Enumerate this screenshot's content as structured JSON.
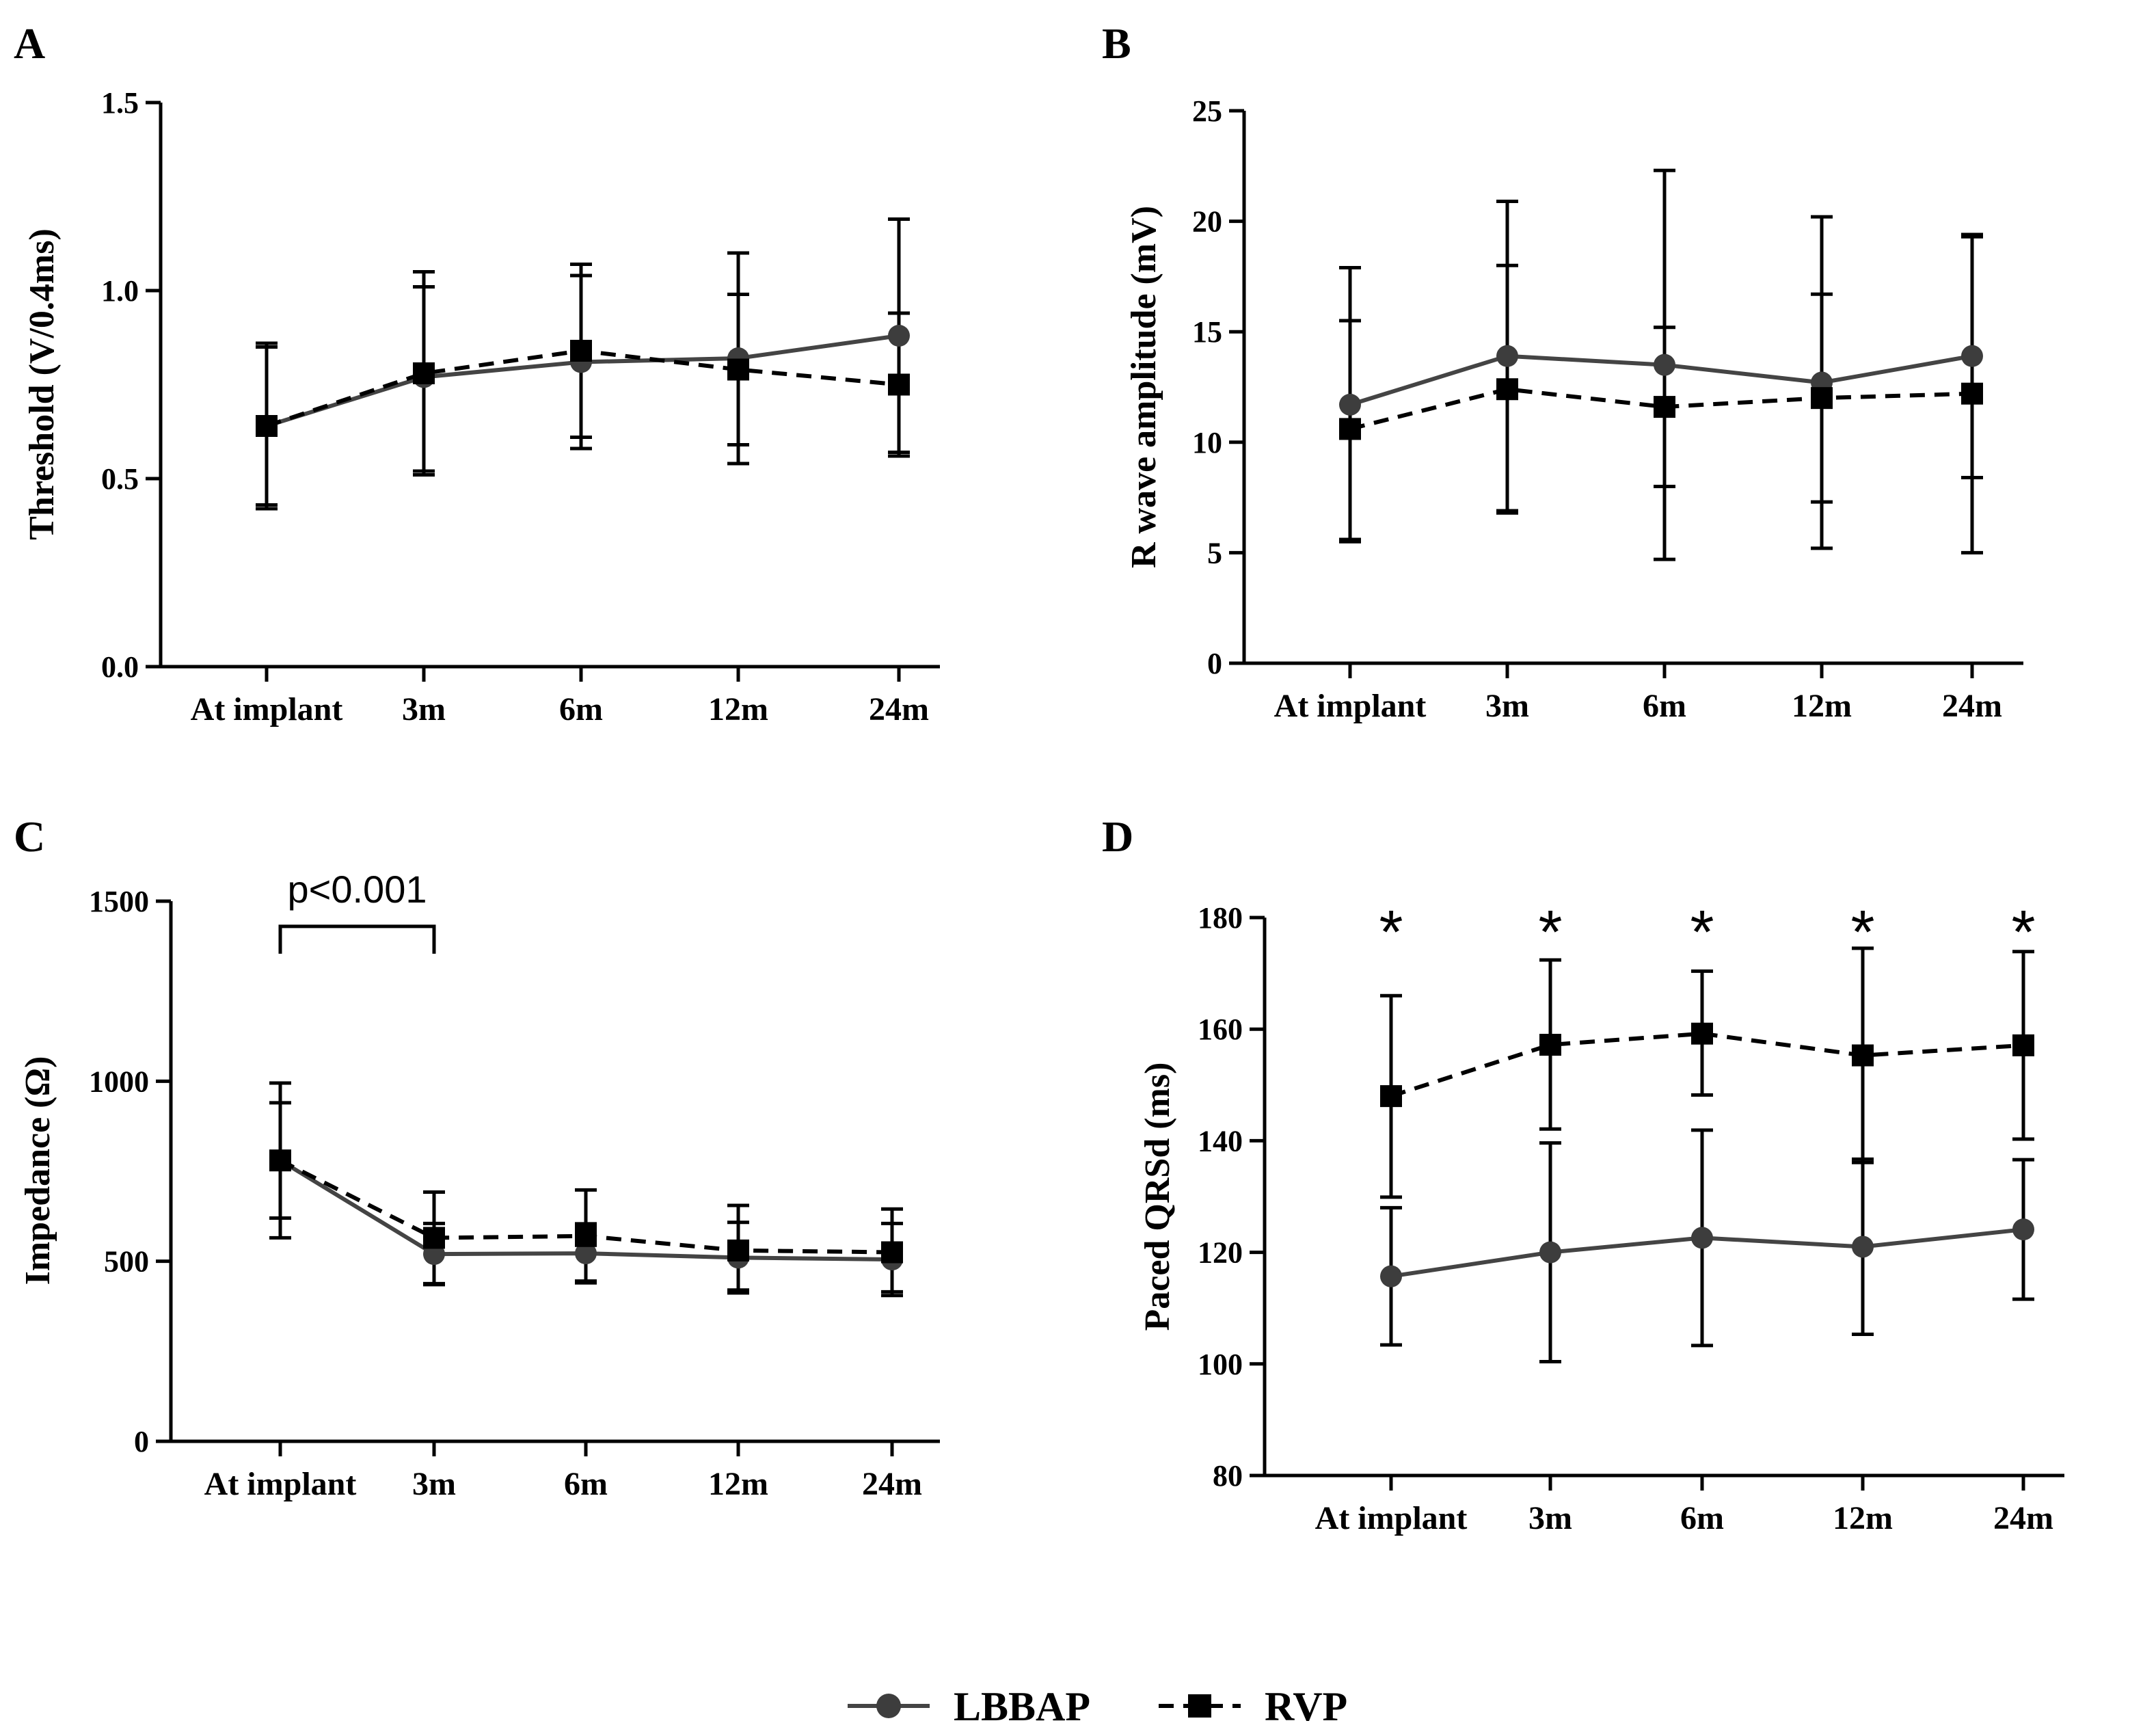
{
  "legend": {
    "items": [
      {
        "name": "LBBAP",
        "color": "#444444",
        "marker": "circle",
        "style": "solid"
      },
      {
        "name": "RVP",
        "color": "#000000",
        "marker": "square",
        "style": "dashed"
      }
    ]
  },
  "chart_data": [
    {
      "panel": "A",
      "type": "line",
      "categories": [
        "At implant",
        "3m",
        "6m",
        "12m",
        "24m"
      ],
      "ylabel": "Threshold (V/0.4ms)",
      "ylim": [
        0,
        1.5
      ],
      "yticks": [
        "0.0",
        "0.5",
        "1.0",
        "1.5"
      ],
      "ytick_values": [
        0,
        0.5,
        1.0,
        1.5
      ],
      "series": [
        {
          "name": "LBBAP",
          "values": [
            0.64,
            0.77,
            0.81,
            0.82,
            0.88
          ],
          "err_low": [
            0.43,
            0.52,
            0.58,
            0.59,
            0.57
          ],
          "err_high": [
            0.85,
            1.01,
            1.04,
            0.99,
            1.19
          ]
        },
        {
          "name": "RVP",
          "values": [
            0.64,
            0.78,
            0.84,
            0.79,
            0.75
          ],
          "err_low": [
            0.42,
            0.51,
            0.61,
            0.54,
            0.56
          ],
          "err_high": [
            0.86,
            1.05,
            1.07,
            1.1,
            0.94
          ]
        }
      ],
      "annotations": []
    },
    {
      "panel": "B",
      "type": "line",
      "categories": [
        "At implant",
        "3m",
        "6m",
        "12m",
        "24m"
      ],
      "ylabel": "R wave amplitude (mV)",
      "ylim": [
        0,
        25
      ],
      "yticks": [
        "0",
        "5",
        "10",
        "15",
        "20",
        "25"
      ],
      "ytick_values": [
        0,
        5,
        10,
        15,
        20,
        25
      ],
      "series": [
        {
          "name": "LBBAP",
          "values": [
            11.7,
            13.9,
            13.5,
            12.7,
            13.9
          ],
          "err_low": [
            5.5,
            6.9,
            4.7,
            5.2,
            8.4
          ],
          "err_high": [
            17.9,
            20.9,
            22.3,
            20.2,
            19.4
          ]
        },
        {
          "name": "RVP",
          "values": [
            10.6,
            12.4,
            11.6,
            12.0,
            12.2
          ],
          "err_low": [
            5.6,
            6.8,
            8.0,
            7.3,
            5.0
          ],
          "err_high": [
            15.5,
            18.0,
            15.2,
            16.7,
            19.3
          ]
        }
      ],
      "annotations": []
    },
    {
      "panel": "C",
      "type": "line",
      "categories": [
        "At implant",
        "3m",
        "6m",
        "12m",
        "24m"
      ],
      "ylabel": "Impedance (Ω)",
      "ylim": [
        0,
        1500
      ],
      "yticks": [
        "0",
        "500",
        "1000",
        "1500"
      ],
      "ytick_values": [
        0,
        500,
        1000,
        1500
      ],
      "series": [
        {
          "name": "LBBAP",
          "values": [
            780,
            520,
            522,
            510,
            505
          ],
          "err_low": [
            565,
            435,
            440,
            412,
            405
          ],
          "err_high": [
            995,
            605,
            604,
            608,
            605
          ]
        },
        {
          "name": "RVP",
          "values": [
            780,
            565,
            570,
            530,
            525
          ],
          "err_low": [
            620,
            438,
            445,
            420,
            415
          ],
          "err_high": [
            940,
            692,
            698,
            655,
            645
          ]
        }
      ],
      "annotations": [
        {
          "type": "bracket",
          "from": 0,
          "to": 1,
          "y": 1430,
          "text": "p<0.001"
        }
      ]
    },
    {
      "panel": "D",
      "type": "line",
      "categories": [
        "At implant",
        "3m",
        "6m",
        "12m",
        "24m"
      ],
      "ylabel": "Paced QRSd (ms)",
      "ylim": [
        80,
        180
      ],
      "yticks": [
        "80",
        "100",
        "120",
        "140",
        "160",
        "180"
      ],
      "ytick_values": [
        80,
        100,
        120,
        140,
        160,
        180
      ],
      "series": [
        {
          "name": "LBBAP",
          "values": [
            115.7,
            120.0,
            122.6,
            121.0,
            124.1
          ],
          "err_low": [
            103.4,
            100.4,
            103.3,
            105.3,
            111.6
          ],
          "err_high": [
            128.0,
            139.6,
            141.9,
            136.7,
            136.6
          ]
        },
        {
          "name": "RVP",
          "values": [
            148.0,
            157.2,
            159.2,
            155.3,
            157.1
          ],
          "err_low": [
            129.9,
            142.1,
            148.2,
            136.1,
            140.3
          ],
          "err_high": [
            166.0,
            172.4,
            170.4,
            174.5,
            173.9
          ]
        }
      ],
      "annotations": [
        {
          "type": "marker",
          "at": 0,
          "text": "*"
        },
        {
          "type": "marker",
          "at": 1,
          "text": "*"
        },
        {
          "type": "marker",
          "at": 2,
          "text": "*"
        },
        {
          "type": "marker",
          "at": 3,
          "text": "*"
        },
        {
          "type": "marker",
          "at": 4,
          "text": "*"
        }
      ]
    }
  ]
}
